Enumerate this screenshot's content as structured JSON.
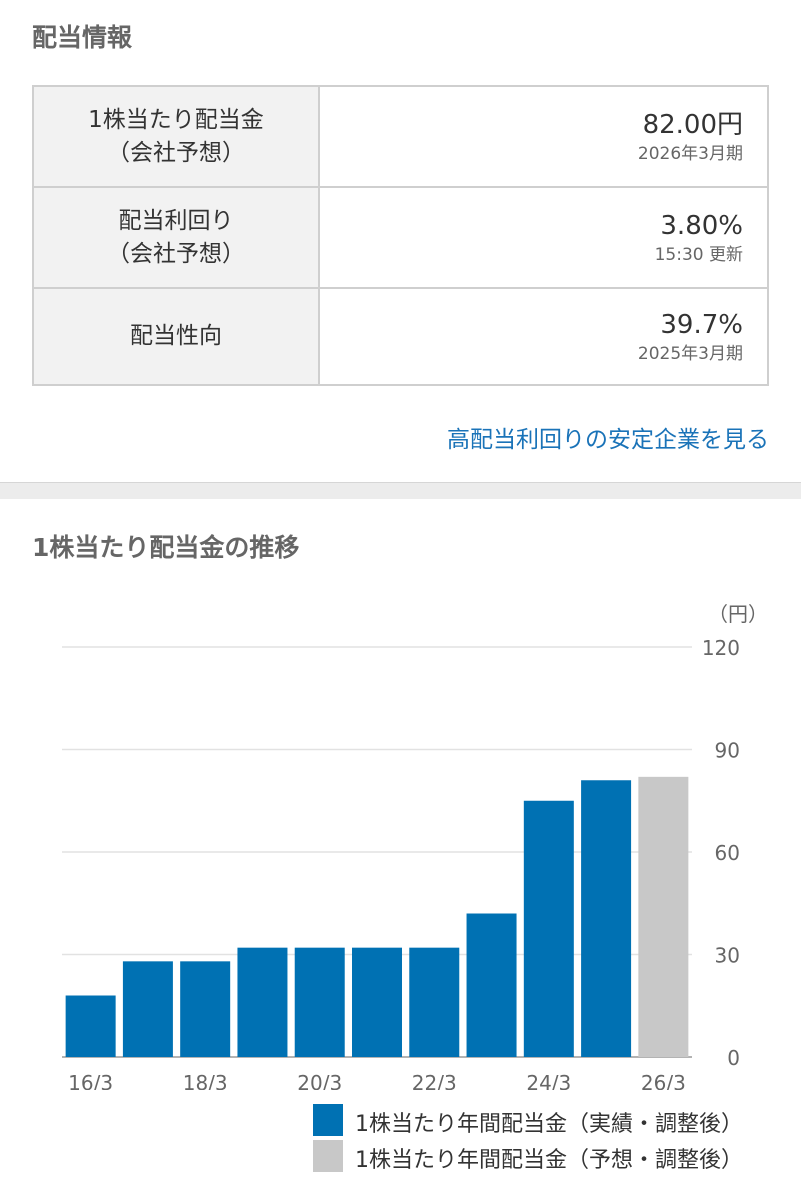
{
  "dividend_info": {
    "title": "配当情報",
    "rows": [
      {
        "label_line1": "1株当たり配当金",
        "label_line2": "（会社予想）",
        "value": "82.00円",
        "sub": "2026年3月期"
      },
      {
        "label_line1": "配当利回り",
        "label_line2": "（会社予想）",
        "value": "3.80%",
        "sub": "15:30 更新"
      },
      {
        "label_line1": "配当性向",
        "label_line2": "",
        "value": "39.7%",
        "sub": "2025年3月期"
      }
    ],
    "link_text": "高配当利回りの安定企業を見る"
  },
  "chart_section": {
    "title": "1株当たり配当金の推移"
  },
  "chart_data": {
    "type": "bar",
    "unit_label": "（円）",
    "categories": [
      "16/3",
      "17/3",
      "18/3",
      "19/3",
      "20/3",
      "21/3",
      "22/3",
      "23/3",
      "24/3",
      "25/3",
      "26/3"
    ],
    "x_tick_labels": [
      "16/3",
      "18/3",
      "20/3",
      "22/3",
      "24/3",
      "26/3"
    ],
    "y_ticks": [
      "0",
      "30",
      "60",
      "90",
      "120"
    ],
    "ylim": [
      0,
      120
    ],
    "grid": true,
    "series": [
      {
        "name": "1株当たり年間配当金（実績・調整後）",
        "color": "#0071b3",
        "values": [
          18,
          28,
          28,
          32,
          32,
          32,
          32,
          42,
          75,
          81,
          null
        ]
      },
      {
        "name": "1株当たり年間配当金（予想・調整後）",
        "color": "#c8c8c8",
        "values": [
          null,
          null,
          null,
          null,
          null,
          null,
          null,
          null,
          null,
          null,
          82
        ]
      }
    ],
    "legend_position": "bottom-right"
  }
}
